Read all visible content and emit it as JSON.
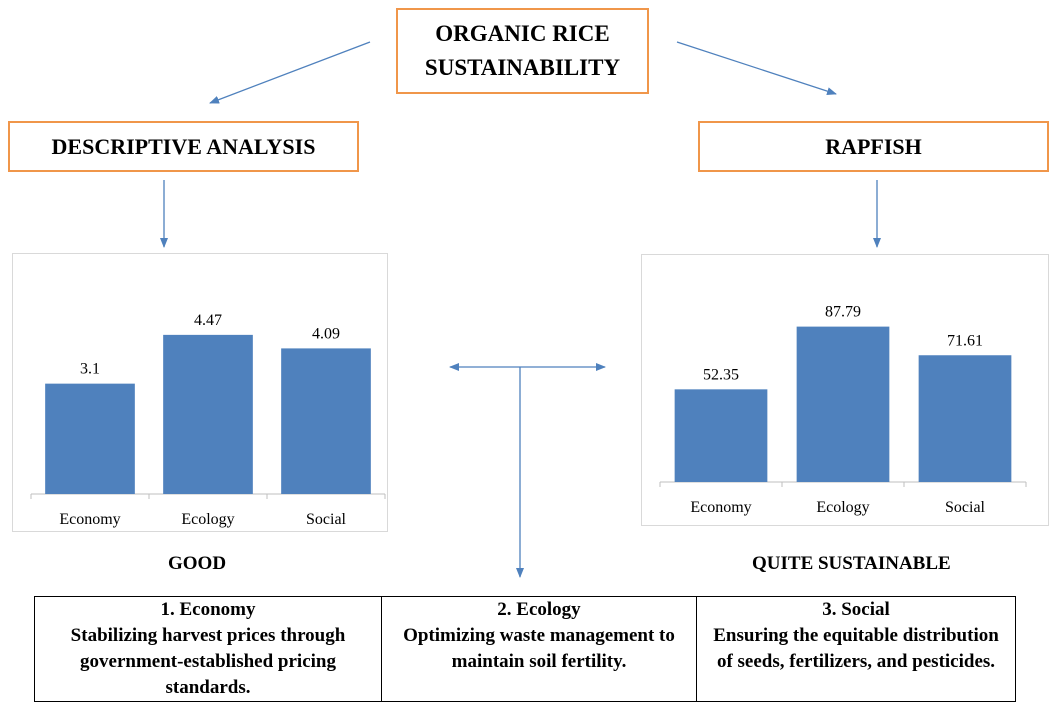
{
  "title": "ORGANIC RICE SUSTAINABILITY",
  "left_method": "DESCRIPTIVE ANALYSIS",
  "right_method": "RAPFISH",
  "left_verdict": "GOOD",
  "right_verdict": "QUITE SUSTAINABLE",
  "chart_data": [
    {
      "type": "bar",
      "categories": [
        "Economy",
        "Ecology",
        "Social"
      ],
      "values": [
        3.1,
        4.47,
        4.09
      ],
      "value_labels": [
        "3.1",
        "4.47",
        "4.09"
      ],
      "color": "#4F81BD",
      "ylim": [
        0,
        5
      ],
      "grid": false
    },
    {
      "type": "bar",
      "categories": [
        "Economy",
        "Ecology",
        "Social"
      ],
      "values": [
        52.35,
        87.79,
        71.61
      ],
      "value_labels": [
        "52.35",
        "87.79",
        "71.61"
      ],
      "color": "#4F81BD",
      "ylim": [
        0,
        100
      ],
      "grid": false
    }
  ],
  "recommendations": [
    {
      "heading": "1.  Economy",
      "text": "Stabilizing harvest prices through government-established pricing standards."
    },
    {
      "heading": "2.  Ecology",
      "text": "Optimizing waste management to maintain soil fertility."
    },
    {
      "heading": "3.  Social",
      "text": "Ensuring the equitable distribution of seeds, fertilizers, and pesticides."
    }
  ],
  "colors": {
    "box_border": "#F0964A",
    "arrow": "#4F81BD",
    "bar": "#4F81BD"
  }
}
